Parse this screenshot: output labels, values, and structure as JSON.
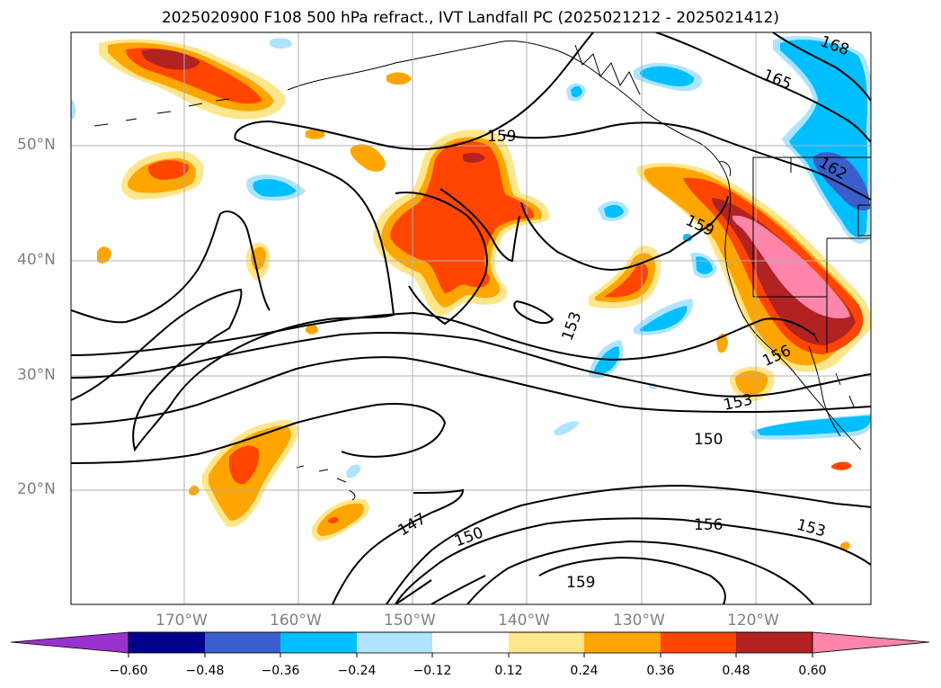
{
  "title": "2025020900 F108 500 hPa refract., IVT Landfall PC (2025021212 - 2025021412)",
  "latitude_labels": [
    "50°N",
    "40°N",
    "30°N",
    "20°N"
  ],
  "longitude_labels": [
    "170°W",
    "160°W",
    "150°W",
    "140°W",
    "130°W",
    "120°W"
  ],
  "contour_labels": [
    "168",
    "165",
    "162",
    "159",
    "159",
    "153",
    "156",
    "153",
    "150",
    "147",
    "150",
    "156",
    "153",
    "159"
  ],
  "colorbar": {
    "ticks": [
      "−0.60",
      "−0.48",
      "−0.36",
      "−0.24",
      "−0.12",
      "0.12",
      "0.24",
      "0.36",
      "0.48",
      "0.60"
    ],
    "colors": [
      "#9932cc",
      "#00008b",
      "#3a5fcd",
      "#00bfff",
      "#aee4ff",
      "#ffffff",
      "#ffe68a",
      "#ffa500",
      "#ff4500",
      "#b22222",
      "#ff85aa"
    ],
    "extend": "both"
  },
  "fill_colors": {
    "neg_light": "#aee4ff",
    "neg_mid": "#00bfff",
    "neg_strong": "#3a5fcd",
    "pos_light": "#ffe68a",
    "pos_mid": "#ffa500",
    "pos_strong": "#ff4500",
    "pos_stronger": "#b22222",
    "pos_max": "#ff85aa"
  }
}
